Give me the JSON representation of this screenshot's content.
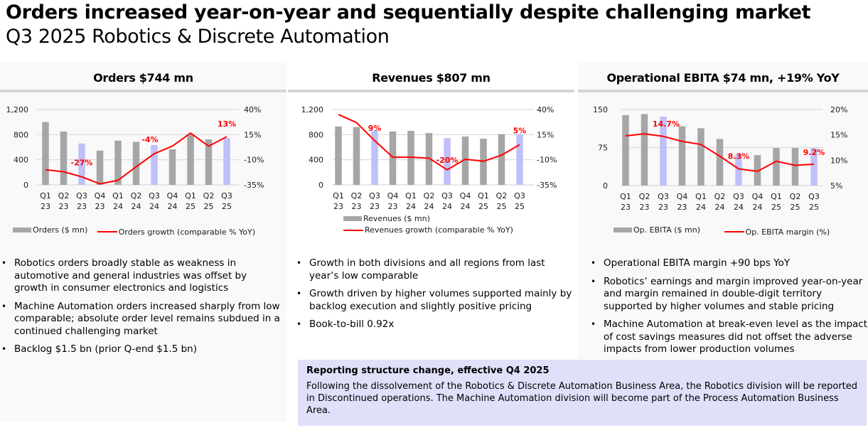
{
  "header": {
    "title": "Orders increased year-on-year and sequentially despite challenging market",
    "subtitle": "Q3 2025 Robotics & Discrete Automation"
  },
  "colors": {
    "bar": "#a6a6a6",
    "bar_highlight": "#c0c0f8",
    "line": "#ff0000",
    "label": "#ff0000",
    "gridline": "#d9d9d9",
    "callout_bg": "#e0e0fa"
  },
  "panels": [
    {
      "heading": "Orders $744 mn",
      "bullets": [
        "Robotics orders broadly stable as weakness in automotive and general industries was offset by growth in consumer electronics and logistics",
        "Machine Automation orders increased sharply from low comparable; absolute order level remains subdued in a continued challenging market",
        "Backlog $1.5 bn (prior Q-end $1.5 bn)"
      ]
    },
    {
      "heading": "Revenues $807 mn",
      "bullets": [
        "Growth in both divisions and all regions from last year’s low comparable",
        "Growth driven by higher volumes supported mainly by backlog execution and slightly positive pricing",
        "Book-to-bill 0.92x"
      ]
    },
    {
      "heading": "Operational EBITA $74 mn, +19% YoY",
      "bullets": [
        "Operational EBITA margin +90 bps YoY",
        "Robotics’ earnings and margin improved year-on-year and margin remained in double-digit territory supported by higher volumes and stable pricing",
        "Machine Automation at break-even level as the impact of cost savings measures did not offset the adverse impacts from lower production volumes"
      ]
    }
  ],
  "callout": {
    "title": "Reporting structure change, effective Q4 2025",
    "body": "Following the dissolvement of the Robotics & Discrete Automation Business Area, the Robotics division will be reported in Discontinued operations. The Machine Automation division will become part of the Process Automation Business Area."
  },
  "chart_data": [
    {
      "type": "bar",
      "title": "Orders $744 mn",
      "categories": [
        [
          "Q1",
          "23"
        ],
        [
          "Q2",
          "23"
        ],
        [
          "Q3",
          "23"
        ],
        [
          "Q4",
          "23"
        ],
        [
          "Q1",
          "24"
        ],
        [
          "Q2",
          "24"
        ],
        [
          "Q3",
          "24"
        ],
        [
          "Q4",
          "24"
        ],
        [
          "Q1",
          "25"
        ],
        [
          "Q2",
          "25"
        ],
        [
          "Q3",
          "25"
        ]
      ],
      "highlight": [
        2,
        6,
        10
      ],
      "series": [
        {
          "name": "Orders ($ mn)",
          "kind": "bar",
          "axis": "left",
          "values": [
            1000,
            850,
            660,
            545,
            705,
            685,
            635,
            565,
            805,
            725,
            744
          ]
        },
        {
          "name": "Orders growth (comparable % YoY)",
          "kind": "line",
          "axis": "right",
          "values": [
            -20,
            -22,
            -27,
            -34,
            -30.5,
            -17,
            -4,
            3.5,
            16.5,
            3.5,
            13
          ]
        }
      ],
      "data_labels": [
        {
          "index": 2,
          "text": "-27%"
        },
        {
          "index": 6,
          "text": "-4%"
        },
        {
          "index": 10,
          "text": "13%"
        }
      ],
      "y_left": {
        "ylim": [
          0,
          1200
        ],
        "ticks": [
          0,
          400,
          800,
          1200
        ],
        "tick_labels": [
          "0",
          "400",
          "800",
          "1,200"
        ]
      },
      "y_right": {
        "ylim": [
          -35,
          40
        ],
        "ticks": [
          -35,
          -10,
          15,
          40
        ],
        "tick_labels": [
          "-35%",
          "-10%",
          "15%",
          "40%"
        ]
      },
      "grid": true,
      "legend_placement": "bottom",
      "legend_layout": "row"
    },
    {
      "type": "bar",
      "title": "Revenues $807 mn",
      "categories": [
        [
          "Q1",
          "23"
        ],
        [
          "Q2",
          "23"
        ],
        [
          "Q3",
          "23"
        ],
        [
          "Q4",
          "23"
        ],
        [
          "Q1",
          "24"
        ],
        [
          "Q2",
          "24"
        ],
        [
          "Q3",
          "24"
        ],
        [
          "Q4",
          "24"
        ],
        [
          "Q1",
          "25"
        ],
        [
          "Q2",
          "25"
        ],
        [
          "Q3",
          "25"
        ]
      ],
      "highlight": [
        2,
        6,
        10
      ],
      "series": [
        {
          "name": "Revenues ($ mn)",
          "kind": "bar",
          "axis": "left",
          "values": [
            930,
            920,
            870,
            850,
            860,
            825,
            745,
            770,
            735,
            807,
            807
          ]
        },
        {
          "name": "Revenues growth (comparable % YoY)",
          "kind": "line",
          "axis": "right",
          "values": [
            35,
            27,
            9,
            -7.5,
            -7.5,
            -8.5,
            -20,
            -9.5,
            -11.5,
            -5.5,
            5
          ]
        }
      ],
      "data_labels": [
        {
          "index": 2,
          "text": "9%"
        },
        {
          "index": 6,
          "text": "-20%"
        },
        {
          "index": 10,
          "text": "5%"
        }
      ],
      "y_left": {
        "ylim": [
          0,
          1200
        ],
        "ticks": [
          0,
          400,
          800,
          1200
        ],
        "tick_labels": [
          "0",
          "400",
          "800",
          "1,200"
        ]
      },
      "y_right": {
        "ylim": [
          -35,
          40
        ],
        "ticks": [
          -35,
          -10,
          15,
          40
        ],
        "tick_labels": [
          "-35%",
          "-10%",
          "15%",
          "40%"
        ]
      },
      "grid": true,
      "legend_placement": "bottom",
      "legend_layout": "column"
    },
    {
      "type": "bar",
      "title": "Operational EBITA $74 mn, +19% YoY",
      "categories": [
        [
          "Q1",
          "23"
        ],
        [
          "Q2",
          "23"
        ],
        [
          "Q3",
          "23"
        ],
        [
          "Q4",
          "23"
        ],
        [
          "Q1",
          "24"
        ],
        [
          "Q2",
          "24"
        ],
        [
          "Q3",
          "24"
        ],
        [
          "Q4",
          "24"
        ],
        [
          "Q1",
          "25"
        ],
        [
          "Q2",
          "25"
        ],
        [
          "Q3",
          "25"
        ]
      ],
      "highlight": [
        2,
        6,
        10
      ],
      "series": [
        {
          "name": "Op. EBITA ($ mn)",
          "kind": "bar",
          "axis": "left",
          "values": [
            139,
            141,
            136,
            117,
            113,
            92,
            62,
            60,
            74,
            74,
            74
          ]
        },
        {
          "name": "Op. EBITA margin (%)",
          "kind": "line",
          "axis": "right",
          "values": [
            14.8,
            15.2,
            14.7,
            13.7,
            13.1,
            10.8,
            8.3,
            7.8,
            9.8,
            9.0,
            9.2
          ]
        }
      ],
      "data_labels": [
        {
          "index": 2,
          "text": "14.7%"
        },
        {
          "index": 6,
          "text": "8.3%"
        },
        {
          "index": 10,
          "text": "9.2%"
        }
      ],
      "y_left": {
        "ylim": [
          0,
          150
        ],
        "ticks": [
          0,
          75,
          150
        ],
        "tick_labels": [
          "0",
          "75",
          "150"
        ]
      },
      "y_right": {
        "ylim": [
          5,
          20
        ],
        "ticks": [
          5,
          10,
          15,
          20
        ],
        "tick_labels": [
          "5%",
          "10%",
          "15%",
          "20%"
        ]
      },
      "grid": true,
      "legend_placement": "bottom",
      "legend_layout": "row"
    }
  ]
}
